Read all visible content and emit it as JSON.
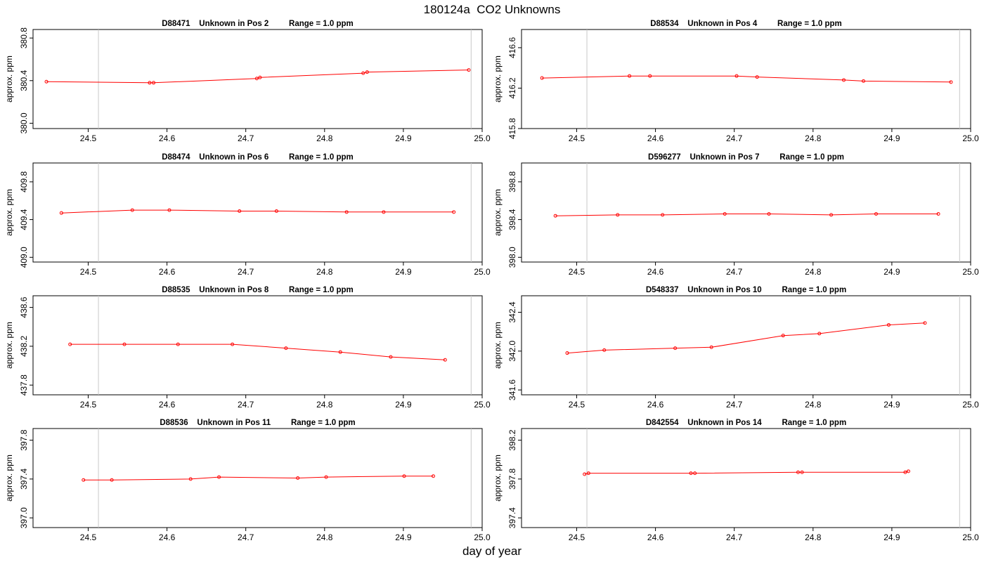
{
  "figure": {
    "title": "180124a  CO2 Unknowns",
    "xlabel": "day of year"
  },
  "chart_data": [
    {
      "type": "line",
      "title": "D88471    Unknown in Pos 2         Range = 1.0 ppm",
      "ylabel": "approx. ppm",
      "xlim": [
        24.43,
        25.0
      ],
      "ylim": [
        379.95,
        380.88
      ],
      "xticks": [
        "24.5",
        "24.6",
        "24.7",
        "24.8",
        "24.9",
        "25.0"
      ],
      "yticks": [
        "380.0",
        "380.4",
        "380.8"
      ],
      "vlines": [
        24.513,
        24.986
      ],
      "series": [
        {
          "color": "#ff0000",
          "x": [
            24.447,
            24.578,
            24.583,
            24.714,
            24.718,
            24.849,
            24.854,
            24.983
          ],
          "y": [
            380.39,
            380.38,
            380.38,
            380.42,
            380.43,
            380.47,
            380.48,
            380.5
          ]
        }
      ]
    },
    {
      "type": "line",
      "title": "D88534    Unknown in Pos 4         Range = 1.0 ppm",
      "ylabel": "approx. ppm",
      "xlim": [
        24.43,
        25.0
      ],
      "ylim": [
        415.8,
        416.78
      ],
      "xticks": [
        "24.5",
        "24.6",
        "24.7",
        "24.8",
        "24.9",
        "25.0"
      ],
      "yticks": [
        "415.8",
        "416.2",
        "416.6"
      ],
      "vlines": [
        24.513,
        24.986
      ],
      "series": [
        {
          "color": "#ff0000",
          "x": [
            24.456,
            24.567,
            24.593,
            24.703,
            24.729,
            24.839,
            24.864,
            24.975
          ],
          "y": [
            416.3,
            416.32,
            416.32,
            416.32,
            416.31,
            416.28,
            416.27,
            416.26
          ]
        }
      ]
    },
    {
      "type": "line",
      "title": "D88474    Unknown in Pos 6         Range = 1.0 ppm",
      "ylabel": "approx. ppm",
      "xlim": [
        24.43,
        25.0
      ],
      "ylim": [
        408.95,
        410.0
      ],
      "xticks": [
        "24.5",
        "24.6",
        "24.7",
        "24.8",
        "24.9",
        "25.0"
      ],
      "yticks": [
        "409.0",
        "409.4",
        "409.8"
      ],
      "vlines": [
        24.513,
        24.986
      ],
      "series": [
        {
          "color": "#ff0000",
          "x": [
            24.466,
            24.556,
            24.603,
            24.692,
            24.739,
            24.828,
            24.875,
            24.964
          ],
          "y": [
            409.47,
            409.5,
            409.5,
            409.49,
            409.49,
            409.48,
            409.48,
            409.48
          ]
        }
      ]
    },
    {
      "type": "line",
      "title": "D596277    Unknown in Pos 7         Range = 1.0 ppm",
      "ylabel": "approx. ppm",
      "xlim": [
        24.43,
        25.0
      ],
      "ylim": [
        397.95,
        399.0
      ],
      "xticks": [
        "24.5",
        "24.6",
        "24.7",
        "24.8",
        "24.9",
        "25.0"
      ],
      "yticks": [
        "398.0",
        "398.4",
        "398.8"
      ],
      "vlines": [
        24.513,
        24.986
      ],
      "series": [
        {
          "color": "#ff0000",
          "x": [
            24.473,
            24.552,
            24.609,
            24.688,
            24.744,
            24.823,
            24.88,
            24.959
          ],
          "y": [
            398.44,
            398.45,
            398.45,
            398.46,
            398.46,
            398.45,
            398.46,
            398.46
          ]
        }
      ]
    },
    {
      "type": "line",
      "title": "D88535    Unknown in Pos 8         Range = 1.0 ppm",
      "ylabel": "approx. ppm",
      "xlim": [
        24.43,
        25.0
      ],
      "ylim": [
        437.7,
        438.72
      ],
      "xticks": [
        "24.5",
        "24.6",
        "24.7",
        "24.8",
        "24.9",
        "25.0"
      ],
      "yticks": [
        "437.8",
        "438.2",
        "438.6"
      ],
      "vlines": [
        24.513,
        24.986
      ],
      "series": [
        {
          "color": "#ff0000",
          "x": [
            24.477,
            24.546,
            24.614,
            24.683,
            24.751,
            24.82,
            24.884,
            24.953
          ],
          "y": [
            438.22,
            438.22,
            438.22,
            438.22,
            438.18,
            438.14,
            438.09,
            438.06
          ]
        }
      ]
    },
    {
      "type": "line",
      "title": "D548337    Unknown in Pos 10         Range = 1.0 ppm",
      "ylabel": "approx. ppm",
      "xlim": [
        24.43,
        25.0
      ],
      "ylim": [
        341.55,
        342.57
      ],
      "xticks": [
        "24.5",
        "24.6",
        "24.7",
        "24.8",
        "24.9",
        "25.0"
      ],
      "yticks": [
        "341.6",
        "342.0",
        "342.4"
      ],
      "vlines": [
        24.513,
        24.986
      ],
      "series": [
        {
          "color": "#ff0000",
          "x": [
            24.488,
            24.535,
            24.625,
            24.671,
            24.762,
            24.808,
            24.896,
            24.942
          ],
          "y": [
            341.98,
            342.01,
            342.03,
            342.04,
            342.16,
            342.18,
            342.27,
            342.29
          ]
        }
      ]
    },
    {
      "type": "line",
      "title": "D88536    Unknown in Pos 11         Range = 1.0 ppm",
      "ylabel": "approx. ppm",
      "xlim": [
        24.43,
        25.0
      ],
      "ylim": [
        396.9,
        397.92
      ],
      "xticks": [
        "24.5",
        "24.6",
        "24.7",
        "24.8",
        "24.9",
        "25.0"
      ],
      "yticks": [
        "397.0",
        "397.4",
        "397.8"
      ],
      "vlines": [
        24.513,
        24.986
      ],
      "series": [
        {
          "color": "#ff0000",
          "x": [
            24.494,
            24.53,
            24.63,
            24.666,
            24.766,
            24.802,
            24.901,
            24.938
          ],
          "y": [
            397.39,
            397.39,
            397.4,
            397.42,
            397.41,
            397.42,
            397.43,
            397.43
          ]
        }
      ]
    },
    {
      "type": "line",
      "title": "D842554    Unknown in Pos 14         Range = 1.0 ppm",
      "ylabel": "approx. ppm",
      "xlim": [
        24.43,
        25.0
      ],
      "ylim": [
        397.3,
        398.32
      ],
      "xticks": [
        "24.5",
        "24.6",
        "24.7",
        "24.8",
        "24.9",
        "25.0"
      ],
      "yticks": [
        "397.4",
        "397.8",
        "398.2"
      ],
      "vlines": [
        24.513,
        24.986
      ],
      "series": [
        {
          "color": "#ff0000",
          "x": [
            24.51,
            24.515,
            24.645,
            24.65,
            24.781,
            24.786,
            24.917,
            24.921
          ],
          "y": [
            397.85,
            397.86,
            397.86,
            397.86,
            397.87,
            397.87,
            397.87,
            397.88
          ]
        }
      ]
    }
  ]
}
